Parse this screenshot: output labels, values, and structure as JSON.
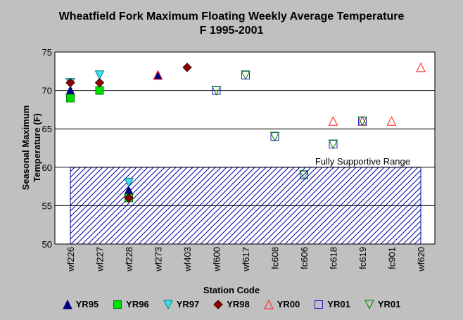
{
  "chart_data": {
    "type": "scatter",
    "title": "Wheatfield Fork Maximum Floating Weekly Average Temperature",
    "subtitle": "F 1995-2001",
    "xlabel": "Station Code",
    "ylabel": [
      "Seasonal Maximum",
      "Temperature (F)"
    ],
    "ylim": [
      50,
      75
    ],
    "yticks": [
      50,
      55,
      60,
      65,
      70,
      75
    ],
    "grid": true,
    "legend_position": "bottom",
    "categories": [
      "wf226",
      "wf227",
      "wf228",
      "wf273",
      "wf403",
      "wf600",
      "wf617",
      "fc608",
      "fc606",
      "fc618",
      "fc619",
      "fc901",
      "wf620"
    ],
    "band": {
      "label": "Fully Supportive Range",
      "y_from": 50,
      "y_to": 60,
      "color": "#0000a0"
    },
    "series": [
      {
        "name": "YR95",
        "marker": "triangle-up",
        "fill": "#000080",
        "stroke": "#000080",
        "points": [
          {
            "x": "wf226",
            "y": 70
          },
          {
            "x": "wf228",
            "y": 57
          },
          {
            "x": "wf273",
            "y": 72
          }
        ]
      },
      {
        "name": "YR96",
        "marker": "square",
        "fill": "#00e000",
        "stroke": "#008000",
        "points": [
          {
            "x": "wf226",
            "y": 69
          },
          {
            "x": "wf227",
            "y": 70
          },
          {
            "x": "wf228",
            "y": 56
          }
        ]
      },
      {
        "name": "YR97",
        "marker": "triangle-down",
        "fill": "#40e0f0",
        "stroke": "#008080",
        "points": [
          {
            "x": "wf226",
            "y": 71
          },
          {
            "x": "wf227",
            "y": 72
          },
          {
            "x": "wf228",
            "y": 58
          }
        ]
      },
      {
        "name": "YR98",
        "marker": "diamond",
        "fill": "#8b0000",
        "stroke": "#400000",
        "points": [
          {
            "x": "wf226",
            "y": 71
          },
          {
            "x": "wf227",
            "y": 71
          },
          {
            "x": "wf228",
            "y": 56
          },
          {
            "x": "wf403",
            "y": 73
          }
        ]
      },
      {
        "name": "YR00",
        "marker": "triangle-up-open",
        "fill": "none",
        "stroke": "#ff2020",
        "points": [
          {
            "x": "wf273",
            "y": 72
          },
          {
            "x": "fc618",
            "y": 66
          },
          {
            "x": "fc619",
            "y": 66
          },
          {
            "x": "fc901",
            "y": 66
          },
          {
            "x": "wf620",
            "y": 73
          }
        ]
      },
      {
        "name": "YR01",
        "marker": "square-open",
        "fill": "none",
        "stroke": "#2020c0",
        "points": [
          {
            "x": "wf600",
            "y": 70
          },
          {
            "x": "wf617",
            "y": 72
          },
          {
            "x": "fc608",
            "y": 64
          },
          {
            "x": "fc606",
            "y": 59
          },
          {
            "x": "fc618",
            "y": 63
          },
          {
            "x": "fc619",
            "y": 66
          }
        ]
      },
      {
        "name": "YR01",
        "marker": "triangle-down-open",
        "fill": "none",
        "stroke": "#008000",
        "points": [
          {
            "x": "wf600",
            "y": 70
          },
          {
            "x": "wf617",
            "y": 72
          },
          {
            "x": "fc608",
            "y": 64
          },
          {
            "x": "fc606",
            "y": 59
          },
          {
            "x": "fc618",
            "y": 63
          },
          {
            "x": "fc619",
            "y": 66
          }
        ]
      }
    ]
  }
}
